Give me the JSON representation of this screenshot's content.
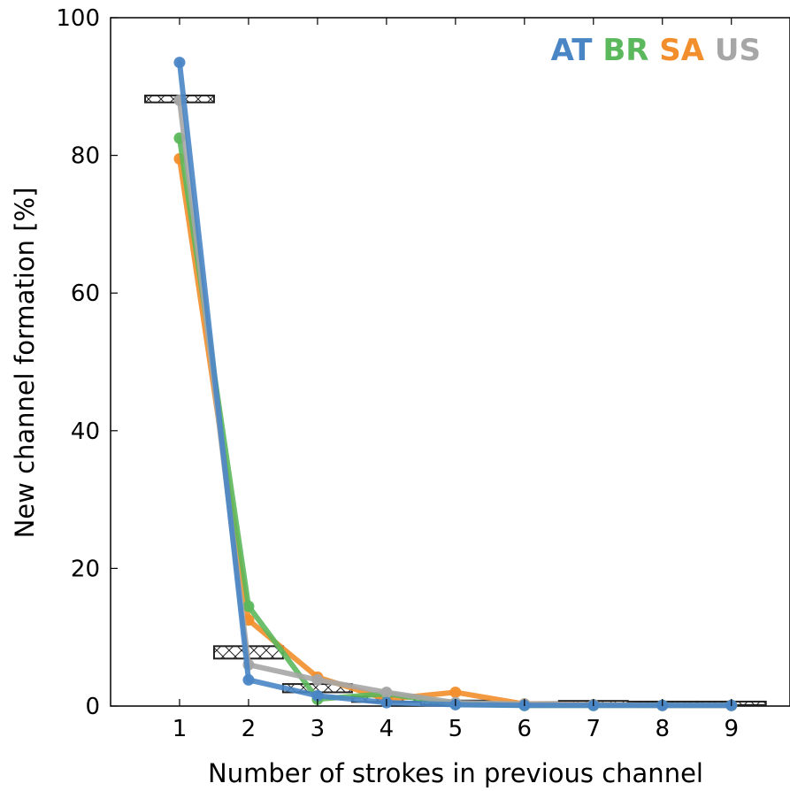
{
  "chart_data": {
    "type": "line",
    "xlabel": "Number of strokes in previous channel",
    "ylabel": "New channel formation [%]",
    "x": [
      1,
      2,
      3,
      4,
      5,
      6,
      7,
      8,
      9
    ],
    "xticks": [
      "1",
      "2",
      "3",
      "4",
      "5",
      "6",
      "7",
      "8",
      "9"
    ],
    "yticks": [
      "0",
      "20",
      "40",
      "60",
      "80",
      "100"
    ],
    "xlim": [
      0,
      9.85
    ],
    "ylim": [
      0,
      100
    ],
    "grid": false,
    "legend_position": "top-right",
    "series": [
      {
        "name": "AT",
        "color": "#4a86c5",
        "values": [
          93.5,
          3.8,
          1.5,
          0.5,
          0.2,
          0.1,
          0.1,
          0.1,
          0.1
        ]
      },
      {
        "name": "BR",
        "color": "#5cb85c",
        "values": [
          82.5,
          14.5,
          1.0,
          1.8,
          0.3,
          0.1,
          0.1,
          0.1,
          0.1
        ]
      },
      {
        "name": "SA",
        "color": "#f28e2b",
        "values": [
          79.5,
          12.5,
          4.2,
          1.0,
          2.0,
          0.3,
          0.2,
          0.1,
          0.1
        ]
      },
      {
        "name": "US",
        "color": "#a6a6a6",
        "values": [
          88.0,
          6.0,
          3.8,
          2.0,
          0.5,
          0.3,
          0.2,
          0.1,
          0.1
        ]
      }
    ],
    "reference_boxes": {
      "values": [
        88.2,
        7.8,
        2.6,
        1.0,
        0.5,
        0.3,
        0.5,
        0.4,
        0.4
      ],
      "band": [
        1.0,
        1.8,
        1.2,
        0.8,
        0.6,
        0.5,
        0.5,
        0.5,
        0.5
      ],
      "stroke": "#222222"
    }
  }
}
